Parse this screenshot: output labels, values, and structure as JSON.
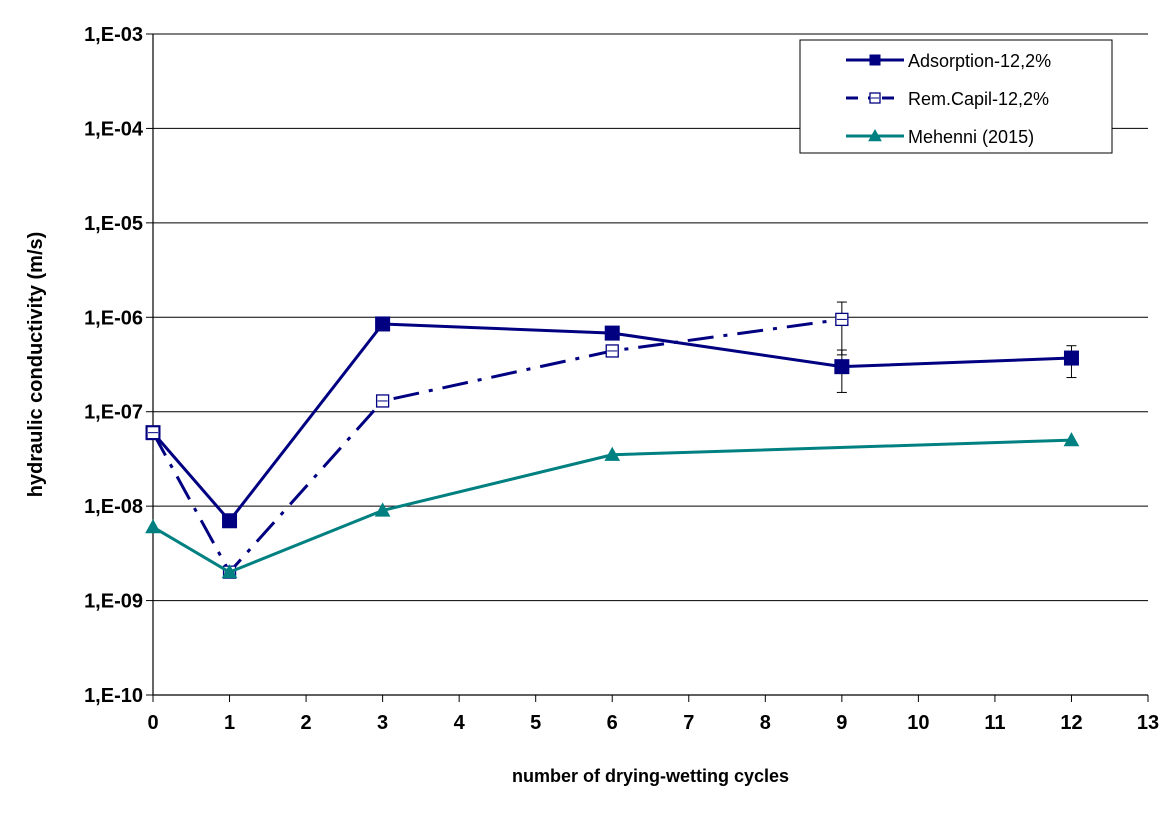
{
  "chart_data": {
    "type": "line",
    "xlabel": "number of drying-wetting cycles",
    "ylabel": "hydraulic conductivity  (m/s)",
    "x_ticks": [
      "0",
      "1",
      "2",
      "3",
      "4",
      "5",
      "6",
      "7",
      "8",
      "9",
      "10",
      "11",
      "12",
      "13"
    ],
    "xlim": [
      0,
      13
    ],
    "y_scale": "log",
    "ylim": [
      1e-10,
      0.001
    ],
    "y_ticks": [
      {
        "value": 1e-10,
        "label": "1,E-10"
      },
      {
        "value": 1e-09,
        "label": "1,E-09"
      },
      {
        "value": 1e-08,
        "label": "1,E-08"
      },
      {
        "value": 1e-07,
        "label": "1,E-07"
      },
      {
        "value": 1e-06,
        "label": "1,E-06"
      },
      {
        "value": 1e-05,
        "label": "1,E-05"
      },
      {
        "value": 0.0001,
        "label": "1,E-04"
      },
      {
        "value": 0.001,
        "label": "1,E-03"
      }
    ],
    "grid": "horizontal",
    "legend_position": "top-right",
    "series": [
      {
        "name": "Adsorption-12,2%",
        "color": "#000080",
        "line_style": "solid",
        "marker": "filled-square",
        "x": [
          0,
          1,
          3,
          6,
          9,
          12
        ],
        "y": [
          6e-08,
          7e-09,
          8.5e-07,
          6.8e-07,
          3e-07,
          3.7e-07
        ],
        "error_bars": [
          {
            "x": 9,
            "low": 1.6e-07,
            "high": 4.5e-07
          },
          {
            "x": 12,
            "low": 2.3e-07,
            "high": 5e-07
          }
        ]
      },
      {
        "name": "Rem.Capil-12,2%",
        "color": "#000080",
        "line_style": "dash-dot",
        "marker": "open-square",
        "x": [
          0,
          1,
          3,
          6,
          9
        ],
        "y": [
          6e-08,
          2e-09,
          1.3e-07,
          4.4e-07,
          9.5e-07
        ],
        "error_bars": [
          {
            "x": 9,
            "low": 4e-07,
            "high": 1.45e-06
          }
        ]
      },
      {
        "name": "Mehenni (2015)",
        "color": "#008080",
        "line_style": "solid",
        "marker": "filled-triangle",
        "x": [
          0,
          1,
          3,
          6,
          12
        ],
        "y": [
          6e-09,
          2e-09,
          9e-09,
          3.5e-08,
          5e-08
        ]
      }
    ]
  }
}
